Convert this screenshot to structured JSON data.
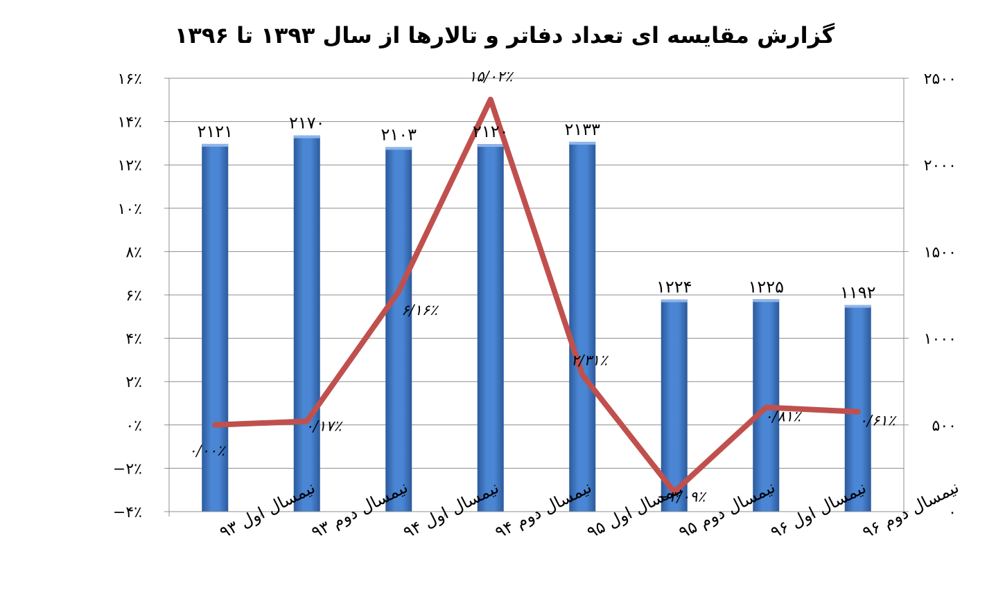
{
  "chart_data": {
    "type": "bar",
    "title": "گزارش مقایسه ای تعداد دفاتر و تالارها از سال ۱۳۹۳ تا ۱۳۹۶",
    "categories": [
      "نیمسال اول ۹۳",
      "نیمسال دوم ۹۳",
      "نیمسال اول ۹۴",
      "نیمسال دوم ۹۴",
      "نیمسال اول ۹۵",
      "نیمسال دوم ۹۵",
      "نیمسال اول ۹۶",
      "نیمسال دوم ۹۶"
    ],
    "series": [
      {
        "type": "bar",
        "axis": "right",
        "values": [
          2121,
          2170,
          2103,
          2120,
          2133,
          1224,
          1225,
          1192
        ],
        "labels": [
          "۲۱۲۱",
          "۲۱۷۰",
          "۲۱۰۳",
          "۲۱۲۰",
          "۲۱۳۳",
          "۱۲۲۴",
          "۱۲۲۵",
          "۱۱۹۲"
        ],
        "color": "#3d78c9"
      },
      {
        "type": "line",
        "axis": "left",
        "values": [
          0.0,
          0.17,
          6.16,
          15.02,
          2.31,
          -3.09,
          0.81,
          0.61
        ],
        "labels": [
          "۰/۰۰٪",
          "۰/۱۷٪",
          "۶/۱۶٪",
          "۱۵/۰۲٪",
          "۲/۳۱٪",
          "−۳/۰۹٪",
          "۰/۸۱٪",
          "۰/۶۱٪"
        ],
        "color": "#c0504d"
      }
    ],
    "y_left": {
      "min": -4,
      "max": 16,
      "step": 2,
      "tick_labels": [
        "−۴٪",
        "−۲٪",
        "۰٪",
        "۲٪",
        "۴٪",
        "۶٪",
        "۸٪",
        "۱۰٪",
        "۱۲٪",
        "۱۴٪",
        "۱۶٪"
      ]
    },
    "y_right": {
      "min": 0,
      "max": 2500,
      "step": 500,
      "tick_labels": [
        "۰",
        "۵۰۰",
        "۱۰۰۰",
        "۱۵۰۰",
        "۲۰۰۰",
        "۲۵۰۰"
      ]
    },
    "grid": true,
    "legend": "none"
  }
}
